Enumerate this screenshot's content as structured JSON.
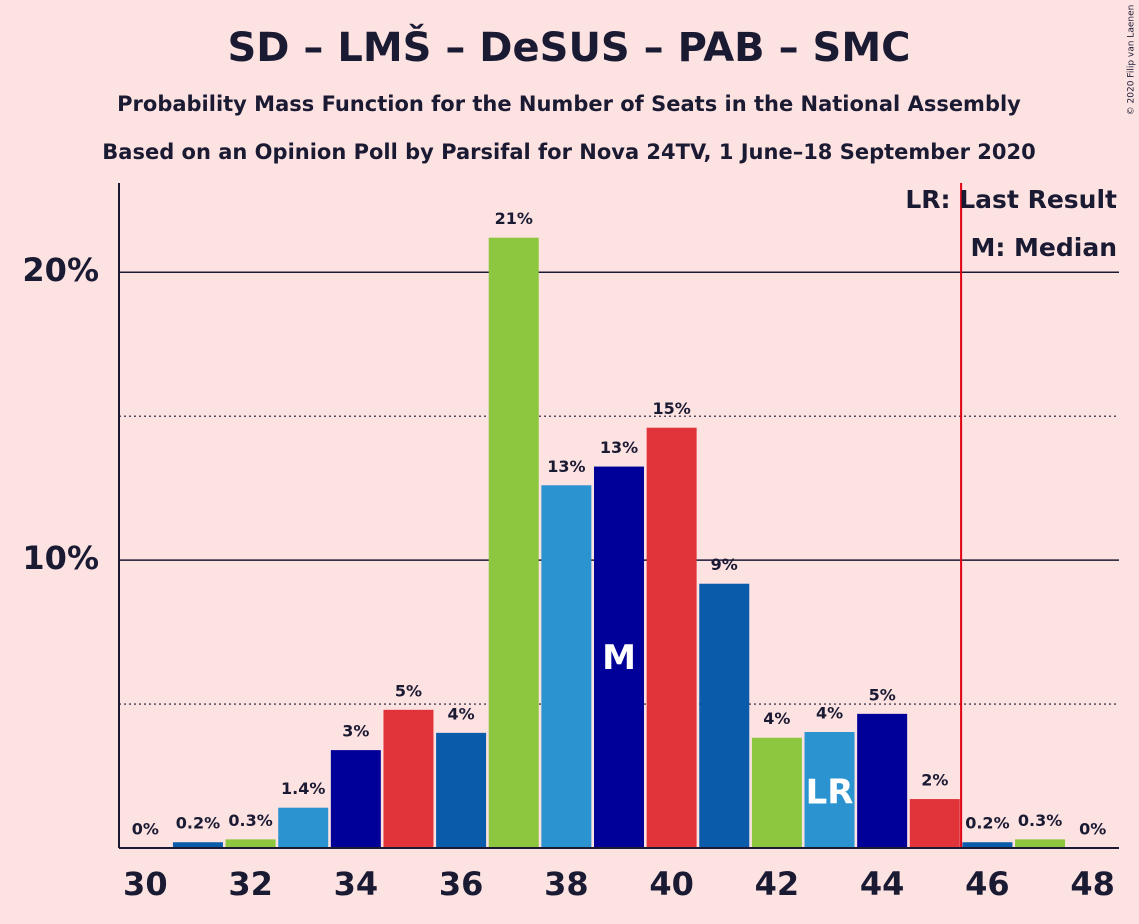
{
  "chart_data": {
    "type": "bar",
    "title": "SD – LMŠ – DeSUS – PAB – SMC",
    "subtitle": "Probability Mass Function for the Number of Seats in the National Assembly",
    "subtitle2": "Based on an Opinion Poll by Parsifal for Nova 24TV, 1 June–18 September 2020",
    "copyright": "© 2020 Filip van Laenen",
    "x": [
      30,
      31,
      32,
      33,
      34,
      35,
      36,
      37,
      38,
      39,
      40,
      41,
      42,
      43,
      44,
      45,
      46,
      47,
      48
    ],
    "values": [
      0,
      0.2,
      0.3,
      1.4,
      3.4,
      4.8,
      4.0,
      21.2,
      12.6,
      13.25,
      14.6,
      9.18,
      3.83,
      4.03,
      4.66,
      1.7,
      0.2,
      0.3,
      0
    ],
    "value_labels": [
      "0%",
      "0.2%",
      "0.3%",
      "1.4%",
      "3%",
      "5%",
      "4%",
      "21%",
      "13%",
      "13%",
      "15%",
      "9%",
      "4%",
      "4%",
      "5%",
      "2%",
      "0.2%",
      "0.3%",
      "0%"
    ],
    "colors": [
      "#000099",
      "#0a5cab",
      "#8dc63f",
      "#2b94d0",
      "#000099",
      "#e0343a",
      "#0a5cab",
      "#8dc63f",
      "#2b94d0",
      "#000099",
      "#e0343a",
      "#0a5cab",
      "#8dc63f",
      "#2b94d0",
      "#000099",
      "#e0343a",
      "#0a5cab",
      "#8dc63f",
      "#2b94d0"
    ],
    "xlim": [
      29.5,
      48.5
    ],
    "xticks": [
      30,
      32,
      34,
      36,
      38,
      40,
      42,
      44,
      46,
      48
    ],
    "ylim": [
      0,
      23.1
    ],
    "yticks": [
      {
        "value": 10,
        "label": "10%"
      },
      {
        "value": 20,
        "label": "20%"
      }
    ],
    "minor_yticks": [
      5,
      15
    ],
    "median": {
      "x": 39,
      "label": "M"
    },
    "last_result": {
      "x": 43,
      "label": "LR"
    },
    "threshold": 45.5,
    "legend": [
      "LR: Last Result",
      "M: Median"
    ]
  }
}
